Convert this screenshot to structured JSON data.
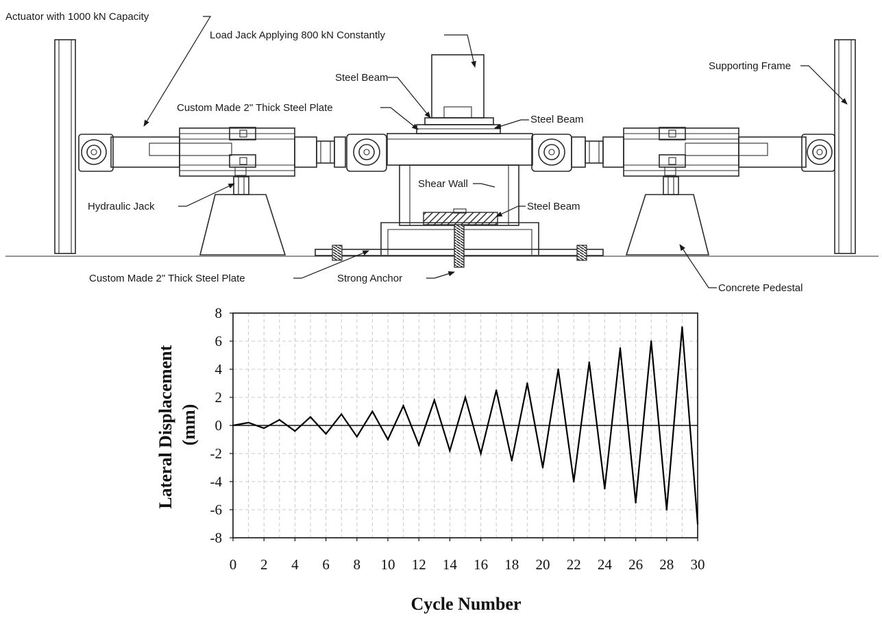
{
  "diagram": {
    "labels": {
      "actuator": "Actuator with 1000 kN Capacity",
      "load_jack": "Load Jack Applying 800 kN Constantly",
      "steel_beam_top": "Steel Beam",
      "steel_plate_top": "Custom Made 2\" Thick Steel Plate",
      "steel_beam_right": "Steel Beam",
      "supporting_frame": "Supporting Frame",
      "shear_wall": "Shear Wall",
      "steel_beam_lower": "Steel Beam",
      "hydraulic_jack": "Hydraulic Jack",
      "steel_plate_bottom": "Custom Made 2\" Thick Steel Plate",
      "strong_anchor": "Strong Anchor",
      "concrete_pedestal": "Concrete Pedestal"
    },
    "colors": {
      "line": "#2a2a2a",
      "hatch": "#333333"
    }
  },
  "chart_data": {
    "type": "line",
    "xlabel": "Cycle Number",
    "ylabel": "Lateral Displacement (mm)",
    "ylabel_lines": [
      "Lateral Displacement",
      "(mm)"
    ],
    "xlim": [
      0,
      30
    ],
    "ylim": [
      -8,
      8
    ],
    "xticks": [
      0,
      2,
      4,
      6,
      8,
      10,
      12,
      14,
      16,
      18,
      20,
      22,
      24,
      26,
      28,
      30
    ],
    "yticks": [
      8,
      6,
      4,
      2,
      0,
      -2,
      -4,
      -6,
      -8
    ],
    "grid": true,
    "series": [
      {
        "color": "#000000",
        "x": [
          0,
          1,
          2,
          3,
          4,
          5,
          6,
          7,
          8,
          9,
          10,
          11,
          12,
          13,
          14,
          15,
          16,
          17,
          18,
          19,
          20,
          21,
          22,
          23,
          24,
          25,
          26,
          27,
          28,
          29,
          30
        ],
        "y": [
          0,
          0.2,
          -0.2,
          0.4,
          -0.4,
          0.6,
          -0.6,
          0.8,
          -0.8,
          1.0,
          -1.0,
          1.4,
          -1.4,
          1.8,
          -1.8,
          2.0,
          -2.0,
          2.5,
          -2.5,
          3.0,
          -3.0,
          4.0,
          -4.0,
          4.5,
          -4.5,
          5.5,
          -5.5,
          6.0,
          -6.0,
          7.0,
          -7.0
        ]
      }
    ]
  }
}
